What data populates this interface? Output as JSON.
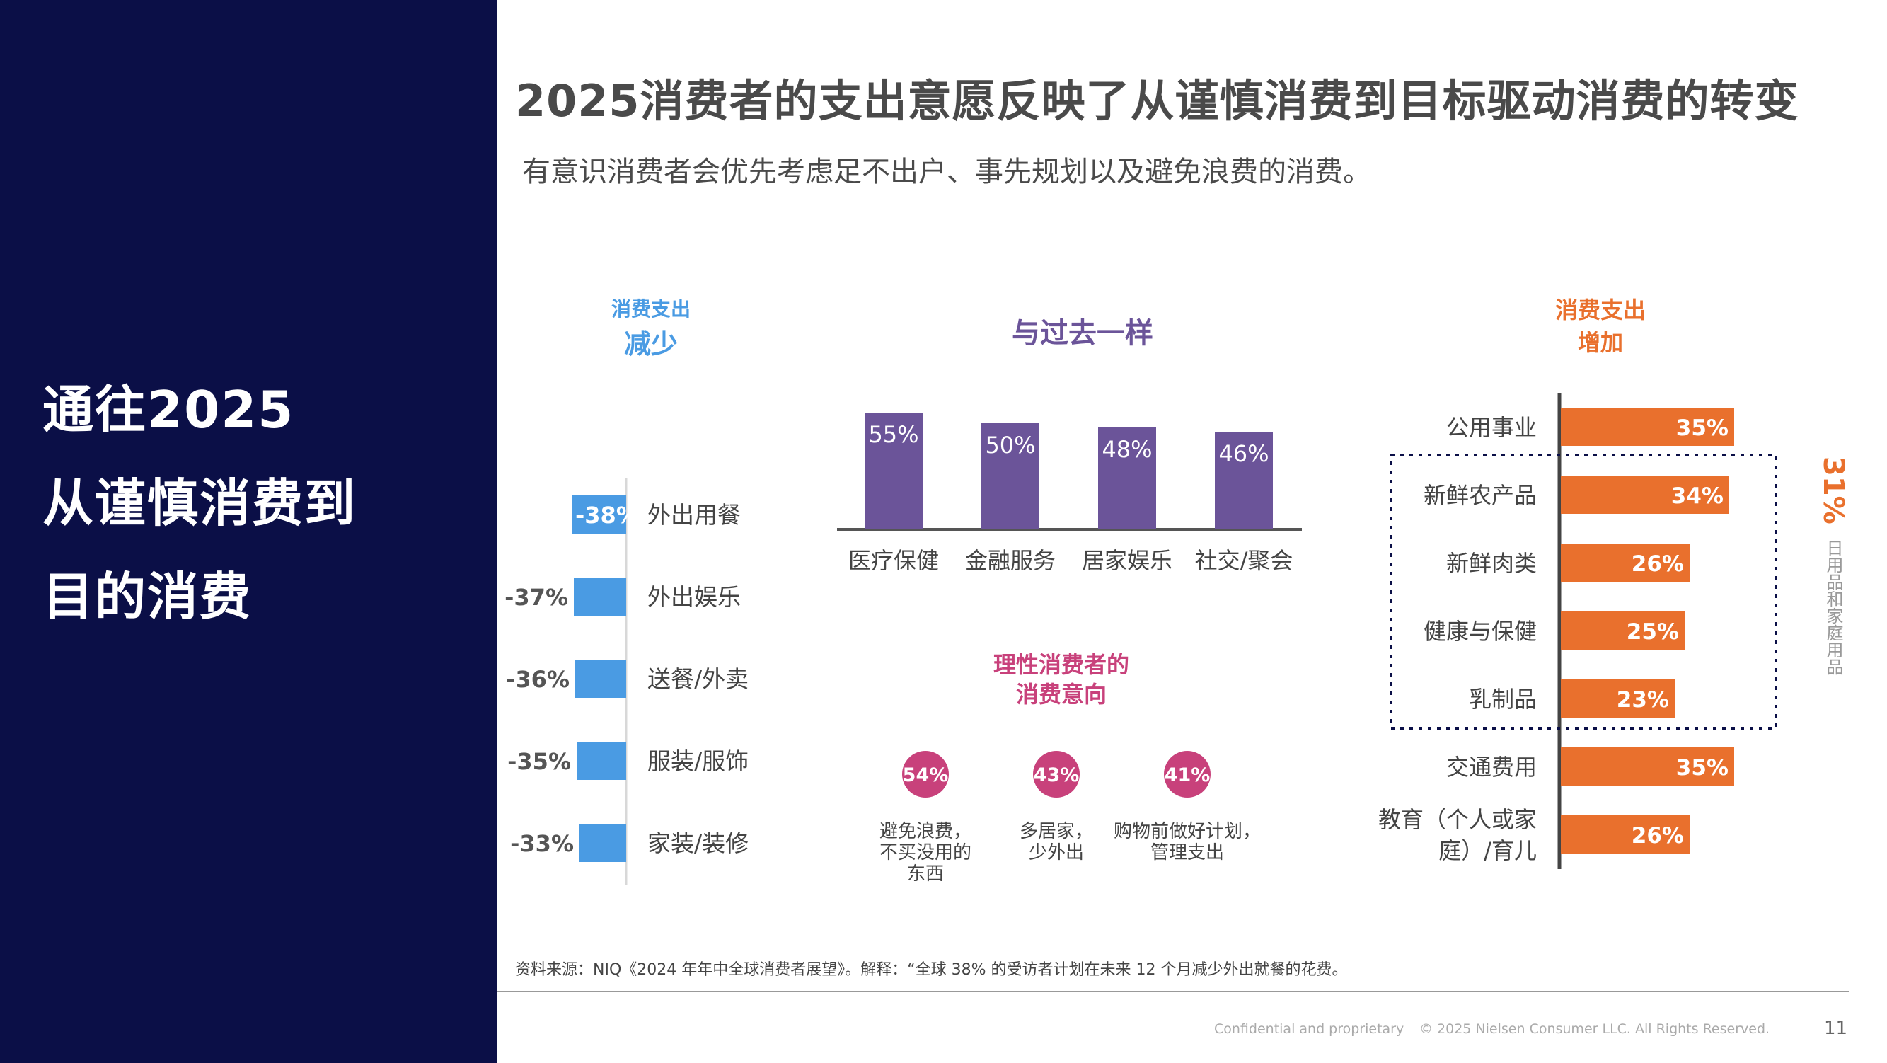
{
  "left_panel": {
    "lines": [
      "通往2025",
      "从谨慎消费到",
      "目的消费"
    ]
  },
  "header": {
    "title": "2025消费者的支出意愿反映了从谨慎消费到目标驱动消费的转变",
    "subtitle": "有意识消费者会优先考虑足不出户、事先规划以及避免浪费的消费。"
  },
  "sections": {
    "decrease": {
      "line1": "消费支出",
      "line2": "减少",
      "color": "#4a9be3"
    },
    "same": {
      "label": "与过去一样",
      "color": "#6b5499"
    },
    "increase": {
      "line1": "消费支出",
      "line2": "增加",
      "color": "#e9702d"
    },
    "intent": {
      "line1": "理性消费者的",
      "line2": "消费意向",
      "color": "#c8417b"
    }
  },
  "chart_data": [
    {
      "type": "bar",
      "orientation": "horizontal",
      "title": "消费支出减少",
      "categories": [
        "外出用餐",
        "外出娱乐",
        "送餐/外卖",
        "服装/服饰",
        "家装/装修"
      ],
      "values": [
        -38,
        -37,
        -36,
        -35,
        -33
      ],
      "value_labels": [
        "-38%",
        "-37%",
        "-36%",
        "-35%",
        "-33%"
      ],
      "color": "#4a9be3"
    },
    {
      "type": "bar",
      "orientation": "vertical",
      "title": "与过去一样",
      "categories": [
        "医疗保健",
        "金融服务",
        "居家娱乐",
        "社交/聚会"
      ],
      "values": [
        55,
        50,
        48,
        46
      ],
      "value_labels": [
        "55%",
        "50%",
        "48%",
        "46%"
      ],
      "color": "#6b5499"
    },
    {
      "type": "bar",
      "orientation": "horizontal",
      "title": "消费支出增加",
      "categories": [
        "公用事业",
        "新鲜农产品",
        "新鲜肉类",
        "健康与保健",
        "乳制品",
        "交通费用",
        "教育（个人或家|庭）/育儿"
      ],
      "values": [
        35,
        34,
        26,
        25,
        23,
        35,
        26
      ],
      "value_labels": [
        "35%",
        "34%",
        "26%",
        "25%",
        "23%",
        "35%",
        "26%"
      ],
      "color": "#e9702d",
      "group_annotation": {
        "value": "31%",
        "label": "日用品和家庭用品"
      }
    },
    {
      "type": "scatter",
      "title": "理性消费者的消费意向",
      "categories": [
        "避免浪费，|不买没用的|东西",
        "多居家，|少外出",
        "购物前做好计划，|管理支出"
      ],
      "values": [
        54,
        43,
        41
      ],
      "value_labels": [
        "54%",
        "43%",
        "41%"
      ],
      "color": "#c8417b"
    }
  ],
  "footer": {
    "source": "资料来源：NIQ《2024 年年中全球消费者展望》。解释：“全球 38% 的受访者计划在未来 12 个月减少外出就餐的花费。",
    "confidential": "Confidential and proprietary",
    "copyright": "© 2025 Nielsen Consumer LLC. All Rights Reserved.",
    "page": "11"
  }
}
